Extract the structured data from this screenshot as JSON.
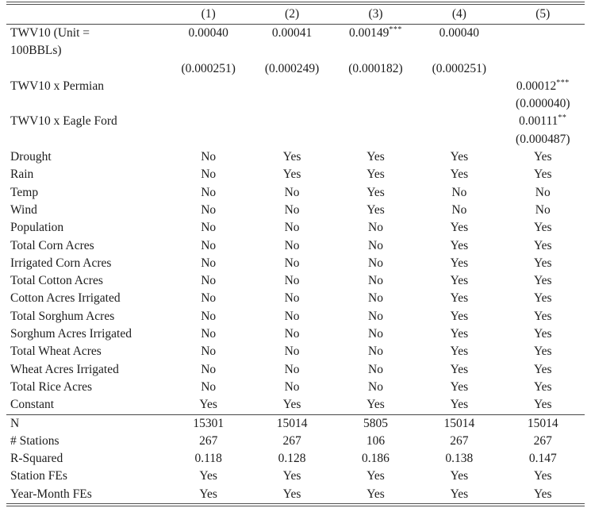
{
  "table": {
    "header": [
      "(1)",
      "(2)",
      "(3)",
      "(4)",
      "(5)"
    ],
    "body": [
      {
        "label": "TWV10 (Unit =",
        "cells": [
          "0.00040",
          "0.00041",
          "0.00149***",
          "0.00040",
          ""
        ]
      },
      {
        "label": "100BBLs)",
        "cells": [
          "",
          "",
          "",
          "",
          ""
        ]
      },
      {
        "label": "",
        "cells": [
          "(0.000251)",
          "(0.000249)",
          "(0.000182)",
          "(0.000251)",
          ""
        ]
      },
      {
        "label": "TWV10 x Permian",
        "cells": [
          "",
          "",
          "",
          "",
          "0.00012***"
        ]
      },
      {
        "label": "",
        "cells": [
          "",
          "",
          "",
          "",
          "(0.000040)"
        ]
      },
      {
        "label": "TWV10 x Eagle Ford",
        "cells": [
          "",
          "",
          "",
          "",
          "0.00111**"
        ]
      },
      {
        "label": "",
        "cells": [
          "",
          "",
          "",
          "",
          "(0.000487)"
        ]
      },
      {
        "label": "Drought",
        "cells": [
          "No",
          "Yes",
          "Yes",
          "Yes",
          "Yes"
        ]
      },
      {
        "label": "Rain",
        "cells": [
          "No",
          "Yes",
          "Yes",
          "Yes",
          "Yes"
        ]
      },
      {
        "label": "Temp",
        "cells": [
          "No",
          "No",
          "Yes",
          "No",
          "No"
        ]
      },
      {
        "label": "Wind",
        "cells": [
          "No",
          "No",
          "Yes",
          "No",
          "No"
        ]
      },
      {
        "label": "Population",
        "cells": [
          "No",
          "No",
          "No",
          "Yes",
          "Yes"
        ]
      },
      {
        "label": "Total Corn Acres",
        "cells": [
          "No",
          "No",
          "No",
          "Yes",
          "Yes"
        ]
      },
      {
        "label": "Irrigated Corn Acres",
        "cells": [
          "No",
          "No",
          "No",
          "Yes",
          "Yes"
        ]
      },
      {
        "label": "Total Cotton Acres",
        "cells": [
          "No",
          "No",
          "No",
          "Yes",
          "Yes"
        ]
      },
      {
        "label": "Cotton Acres Irrigated",
        "cells": [
          "No",
          "No",
          "No",
          "Yes",
          "Yes"
        ]
      },
      {
        "label": "Total Sorghum Acres",
        "cells": [
          "No",
          "No",
          "No",
          "Yes",
          "Yes"
        ]
      },
      {
        "label": "Sorghum Acres Irrigated",
        "cells": [
          "No",
          "No",
          "No",
          "Yes",
          "Yes"
        ]
      },
      {
        "label": "Total Wheat Acres",
        "cells": [
          "No",
          "No",
          "No",
          "Yes",
          "Yes"
        ]
      },
      {
        "label": "Wheat Acres Irrigated",
        "cells": [
          "No",
          "No",
          "No",
          "Yes",
          "Yes"
        ]
      },
      {
        "label": "Total Rice Acres",
        "cells": [
          "No",
          "No",
          "No",
          "Yes",
          "Yes"
        ]
      },
      {
        "label": "Constant",
        "cells": [
          "Yes",
          "Yes",
          "Yes",
          "Yes",
          "Yes"
        ]
      }
    ],
    "stats": [
      {
        "label": "N",
        "cells": [
          "15301",
          "15014",
          "5805",
          "15014",
          "15014"
        ]
      },
      {
        "label": "# Stations",
        "cells": [
          "267",
          "267",
          "106",
          "267",
          "267"
        ]
      },
      {
        "label": "R-Squared",
        "cells": [
          "0.118",
          "0.128",
          "0.186",
          "0.138",
          "0.147"
        ]
      },
      {
        "label": "Station FEs",
        "cells": [
          "Yes",
          "Yes",
          "Yes",
          "Yes",
          "Yes"
        ]
      },
      {
        "label": "Year-Month FEs",
        "cells": [
          "Yes",
          "Yes",
          "Yes",
          "Yes",
          "Yes"
        ]
      }
    ],
    "colors": {
      "rule": "#4f4f4f",
      "text": "#1c1c1c",
      "background": "#ffffff"
    }
  }
}
